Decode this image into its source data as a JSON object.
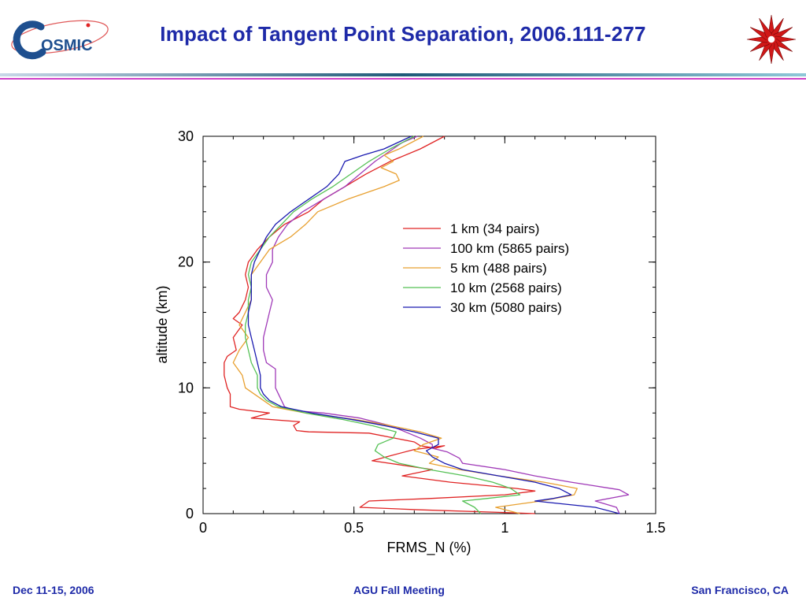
{
  "header": {
    "title": "Impact of Tangent Point Separation, 2006.111-277",
    "logo_text": "OSMIC",
    "brand_color": "#1e2aa8"
  },
  "footer": {
    "left": "Dec 11-15, 2006",
    "center": "AGU Fall Meeting",
    "right": "San Francisco, CA"
  },
  "chart_data": {
    "type": "line",
    "title": "",
    "xlabel": "FRMS_N  (%)",
    "ylabel": "altitude (km)",
    "xlim": [
      0,
      1.5
    ],
    "ylim": [
      0,
      30
    ],
    "x_ticks": [
      {
        "value": 0,
        "label": "0"
      },
      {
        "value": 0.5,
        "label": "0.5"
      },
      {
        "value": 1,
        "label": "1"
      },
      {
        "value": 1.5,
        "label": "1.5"
      }
    ],
    "y_ticks": [
      {
        "value": 0,
        "label": "0"
      },
      {
        "value": 10,
        "label": "10"
      },
      {
        "value": 20,
        "label": "20"
      },
      {
        "value": 30,
        "label": "30"
      }
    ],
    "legend_position": "upper-right",
    "series": [
      {
        "name": "1 km (34 pairs)",
        "color": "#e02424",
        "points": [
          [
            0.8,
            30
          ],
          [
            0.72,
            29
          ],
          [
            0.62,
            28
          ],
          [
            0.54,
            27
          ],
          [
            0.47,
            26
          ],
          [
            0.4,
            25
          ],
          [
            0.35,
            24
          ],
          [
            0.27,
            23
          ],
          [
            0.22,
            22
          ],
          [
            0.18,
            21
          ],
          [
            0.15,
            20
          ],
          [
            0.14,
            19
          ],
          [
            0.15,
            18
          ],
          [
            0.14,
            17
          ],
          [
            0.12,
            16
          ],
          [
            0.1,
            15.5
          ],
          [
            0.13,
            15
          ],
          [
            0.1,
            14
          ],
          [
            0.11,
            13
          ],
          [
            0.08,
            12.5
          ],
          [
            0.07,
            12
          ],
          [
            0.07,
            11
          ],
          [
            0.08,
            10
          ],
          [
            0.09,
            9.5
          ],
          [
            0.09,
            8.5
          ],
          [
            0.12,
            8.3
          ],
          [
            0.22,
            8
          ],
          [
            0.16,
            7.6
          ],
          [
            0.32,
            7.3
          ],
          [
            0.3,
            7
          ],
          [
            0.31,
            6.6
          ],
          [
            0.35,
            6.5
          ],
          [
            0.55,
            6.4
          ],
          [
            0.7,
            5.7
          ],
          [
            0.72,
            5.4
          ],
          [
            0.77,
            5.2
          ],
          [
            0.8,
            5.4
          ],
          [
            0.7,
            5.1
          ],
          [
            0.62,
            4.6
          ],
          [
            0.56,
            4.2
          ],
          [
            0.76,
            3.5
          ],
          [
            0.66,
            3.0
          ],
          [
            0.82,
            2.5
          ],
          [
            1.04,
            2.0
          ],
          [
            1.1,
            1.8
          ],
          [
            1.0,
            1.5
          ],
          [
            0.75,
            1.2
          ],
          [
            0.55,
            1.0
          ],
          [
            0.52,
            0.5
          ],
          [
            0.72,
            0.3
          ],
          [
            0.98,
            0.1
          ],
          [
            1.1,
            0.0
          ]
        ]
      },
      {
        "name": "100 km (5865 pairs)",
        "color": "#a03ab8",
        "points": [
          [
            0.71,
            30
          ],
          [
            0.66,
            29.5
          ],
          [
            0.57,
            28
          ],
          [
            0.47,
            26
          ],
          [
            0.4,
            25
          ],
          [
            0.33,
            24
          ],
          [
            0.28,
            23
          ],
          [
            0.25,
            22
          ],
          [
            0.23,
            21
          ],
          [
            0.23,
            20
          ],
          [
            0.21,
            19
          ],
          [
            0.21,
            18
          ],
          [
            0.22,
            17.5
          ],
          [
            0.23,
            17
          ],
          [
            0.22,
            16
          ],
          [
            0.21,
            15
          ],
          [
            0.2,
            14
          ],
          [
            0.2,
            13
          ],
          [
            0.21,
            12
          ],
          [
            0.24,
            11.5
          ],
          [
            0.24,
            11
          ],
          [
            0.24,
            10.5
          ],
          [
            0.24,
            10
          ],
          [
            0.25,
            9.5
          ],
          [
            0.27,
            8.5
          ],
          [
            0.3,
            8.2
          ],
          [
            0.4,
            8
          ],
          [
            0.52,
            7.6
          ],
          [
            0.62,
            7
          ],
          [
            0.72,
            6
          ],
          [
            0.76,
            5.5
          ],
          [
            0.76,
            5.2
          ],
          [
            0.81,
            4.9
          ],
          [
            0.85,
            4.4
          ],
          [
            0.86,
            4
          ],
          [
            1.0,
            3.5
          ],
          [
            1.1,
            3
          ],
          [
            1.22,
            2.5
          ],
          [
            1.3,
            2.2
          ],
          [
            1.38,
            1.9
          ],
          [
            1.41,
            1.5
          ],
          [
            1.3,
            1.0
          ],
          [
            1.37,
            0.5
          ],
          [
            1.38,
            0
          ]
        ]
      },
      {
        "name": "5 km (488 pairs)",
        "color": "#e8a030",
        "points": [
          [
            0.73,
            30
          ],
          [
            0.65,
            29
          ],
          [
            0.6,
            28.5
          ],
          [
            0.63,
            28
          ],
          [
            0.59,
            27.5
          ],
          [
            0.64,
            27
          ],
          [
            0.65,
            26.5
          ],
          [
            0.6,
            26
          ],
          [
            0.48,
            25
          ],
          [
            0.38,
            24
          ],
          [
            0.34,
            23
          ],
          [
            0.29,
            22
          ],
          [
            0.22,
            21
          ],
          [
            0.19,
            20
          ],
          [
            0.16,
            19
          ],
          [
            0.16,
            18
          ],
          [
            0.16,
            17
          ],
          [
            0.14,
            16
          ],
          [
            0.12,
            15
          ],
          [
            0.15,
            14
          ],
          [
            0.12,
            13
          ],
          [
            0.1,
            12
          ],
          [
            0.13,
            11
          ],
          [
            0.14,
            10
          ],
          [
            0.17,
            9.5
          ],
          [
            0.2,
            9
          ],
          [
            0.23,
            8.5
          ],
          [
            0.34,
            8
          ],
          [
            0.5,
            7.5
          ],
          [
            0.62,
            7
          ],
          [
            0.72,
            6.5
          ],
          [
            0.79,
            6
          ],
          [
            0.73,
            5.5
          ],
          [
            0.7,
            5
          ],
          [
            0.78,
            4.5
          ],
          [
            0.75,
            4
          ],
          [
            0.85,
            3.5
          ],
          [
            0.98,
            3
          ],
          [
            1.13,
            2.5
          ],
          [
            1.24,
            2
          ],
          [
            1.23,
            1.5
          ],
          [
            1.12,
            1.0
          ],
          [
            0.97,
            0.5
          ],
          [
            1.05,
            0
          ]
        ]
      },
      {
        "name": "10 km (2568 pairs)",
        "color": "#55c155",
        "points": [
          [
            0.7,
            30
          ],
          [
            0.62,
            29
          ],
          [
            0.55,
            28
          ],
          [
            0.49,
            27
          ],
          [
            0.43,
            26
          ],
          [
            0.36,
            25
          ],
          [
            0.3,
            24
          ],
          [
            0.26,
            23
          ],
          [
            0.22,
            22
          ],
          [
            0.19,
            21
          ],
          [
            0.16,
            20
          ],
          [
            0.15,
            19
          ],
          [
            0.16,
            18
          ],
          [
            0.15,
            17
          ],
          [
            0.15,
            16
          ],
          [
            0.14,
            15
          ],
          [
            0.14,
            14
          ],
          [
            0.15,
            13
          ],
          [
            0.16,
            12
          ],
          [
            0.18,
            11
          ],
          [
            0.18,
            10
          ],
          [
            0.19,
            9.5
          ],
          [
            0.21,
            9
          ],
          [
            0.25,
            8.5
          ],
          [
            0.34,
            8
          ],
          [
            0.46,
            7.5
          ],
          [
            0.56,
            7
          ],
          [
            0.64,
            6.5
          ],
          [
            0.63,
            6
          ],
          [
            0.58,
            5.5
          ],
          [
            0.57,
            5
          ],
          [
            0.6,
            4.5
          ],
          [
            0.65,
            4
          ],
          [
            0.75,
            3.5
          ],
          [
            0.87,
            3
          ],
          [
            0.96,
            2.5
          ],
          [
            1.02,
            2
          ],
          [
            1.05,
            1.5
          ],
          [
            0.94,
            1.2
          ],
          [
            0.86,
            1.0
          ],
          [
            0.9,
            0.5
          ],
          [
            0.92,
            0
          ]
        ]
      },
      {
        "name": "30 km (5080 pairs)",
        "color": "#1a1ab0",
        "points": [
          [
            0.69,
            30
          ],
          [
            0.6,
            29
          ],
          [
            0.53,
            28.5
          ],
          [
            0.47,
            28
          ],
          [
            0.45,
            27
          ],
          [
            0.41,
            26
          ],
          [
            0.35,
            25
          ],
          [
            0.29,
            24
          ],
          [
            0.24,
            23
          ],
          [
            0.21,
            22
          ],
          [
            0.19,
            21
          ],
          [
            0.17,
            20
          ],
          [
            0.16,
            19
          ],
          [
            0.16,
            18
          ],
          [
            0.16,
            17
          ],
          [
            0.15,
            16
          ],
          [
            0.15,
            15
          ],
          [
            0.16,
            14
          ],
          [
            0.17,
            13
          ],
          [
            0.18,
            12
          ],
          [
            0.19,
            11
          ],
          [
            0.19,
            10
          ],
          [
            0.2,
            9.5
          ],
          [
            0.22,
            9
          ],
          [
            0.26,
            8.5
          ],
          [
            0.36,
            8
          ],
          [
            0.49,
            7.5
          ],
          [
            0.6,
            7
          ],
          [
            0.7,
            6.5
          ],
          [
            0.78,
            6
          ],
          [
            0.78,
            5.5
          ],
          [
            0.74,
            5
          ],
          [
            0.76,
            4.5
          ],
          [
            0.8,
            4
          ],
          [
            0.86,
            3.5
          ],
          [
            0.98,
            3
          ],
          [
            1.1,
            2.5
          ],
          [
            1.18,
            2
          ],
          [
            1.22,
            1.5
          ],
          [
            1.16,
            1.2
          ],
          [
            1.1,
            1.0
          ],
          [
            1.3,
            0.5
          ],
          [
            1.38,
            0
          ]
        ]
      }
    ]
  }
}
